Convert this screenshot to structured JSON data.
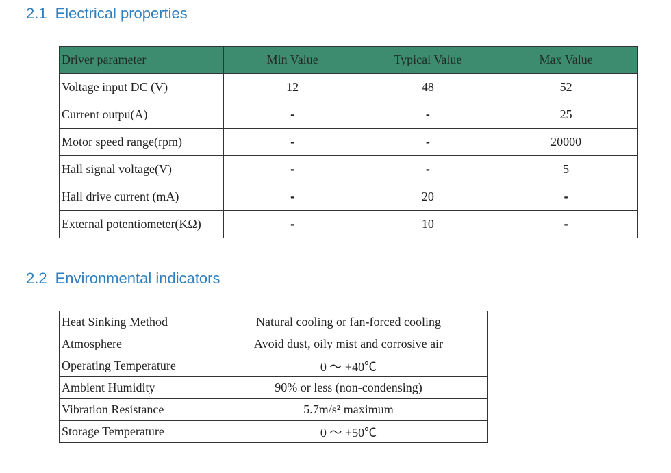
{
  "sections": [
    {
      "number": "2.1",
      "title": "Electrical properties"
    },
    {
      "number": "2.2",
      "title": "Environmental indicators"
    }
  ],
  "electrical_table": {
    "headers": [
      "Driver parameter",
      "Min Value",
      "Typical Value",
      "Max Value"
    ],
    "header_color": "#3d8c6f",
    "rows": [
      [
        "Voltage input DC (V)",
        "12",
        "48",
        "52"
      ],
      [
        "Current outpu(A)",
        "-",
        "-",
        "25"
      ],
      [
        "Motor speed range(rpm)",
        "-",
        "-",
        "20000"
      ],
      [
        "Hall signal voltage(V)",
        "-",
        "-",
        "5"
      ],
      [
        "Hall drive current (mA)",
        "-",
        "20",
        "-"
      ],
      [
        "External potentiometer(KΩ)",
        "-",
        "10",
        "-"
      ]
    ]
  },
  "environment_table": {
    "rows": [
      [
        "Heat Sinking Method",
        "Natural cooling or fan-forced cooling"
      ],
      [
        "Atmosphere",
        "Avoid dust, oily mist and corrosive air"
      ],
      [
        "Operating Temperature",
        "0 ～ +40℃"
      ],
      [
        "Ambient  Humidity",
        "90% or less (non-condensing)"
      ],
      [
        "Vibration Resistance",
        "5.7m/s² maximum"
      ],
      [
        "Storage Temperature",
        "0 ～ +50℃"
      ]
    ]
  },
  "heading_color": "#2f7fc0"
}
